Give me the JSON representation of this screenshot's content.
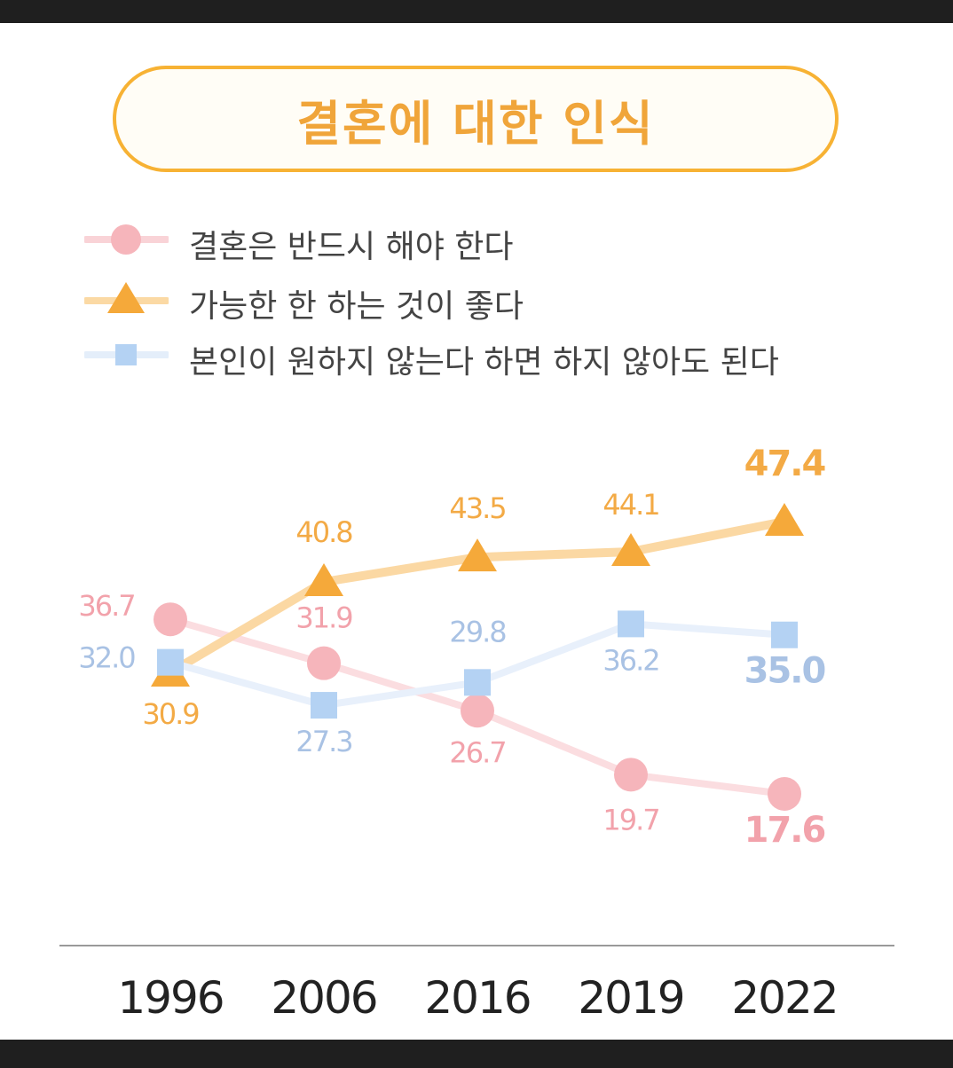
{
  "header": {
    "title": "결혼에 대한 인식"
  },
  "colors": {
    "series_must": "#f4a6ad",
    "series_better": "#f5a93a",
    "series_optional": "#a7c8f0",
    "label_must": "#f2a2ab",
    "label_better": "#f3aa45",
    "label_optional": "#a9c2e4",
    "title": "#f0a53a",
    "axis": "#999999"
  },
  "chart_data": {
    "type": "line",
    "title": "결혼에 대한 인식",
    "categories": [
      "1996",
      "2006",
      "2016",
      "2019",
      "2022"
    ],
    "ylim": [
      15,
      50
    ],
    "grid": false,
    "legend_position": "top-left",
    "series": [
      {
        "key": "must",
        "name": "결혼은 반드시 해야 한다",
        "marker": "circle",
        "values": [
          36.7,
          31.9,
          26.7,
          19.7,
          17.6
        ],
        "labels": [
          "36.7",
          "31.9",
          "26.7",
          "19.7",
          "17.6"
        ]
      },
      {
        "key": "better",
        "name": "가능한 한 하는 것이 좋다",
        "marker": "triangle",
        "values": [
          30.9,
          40.8,
          43.5,
          44.1,
          47.4
        ],
        "labels": [
          "30.9",
          "40.8",
          "43.5",
          "44.1",
          "47.4"
        ]
      },
      {
        "key": "optional",
        "name": "본인이 원하지 않는다 하면 하지 않아도 된다",
        "marker": "square",
        "values": [
          32.0,
          27.3,
          29.8,
          36.2,
          35.0
        ],
        "labels": [
          "32.0",
          "27.3",
          "29.8",
          "36.2",
          "35.0"
        ]
      }
    ]
  }
}
